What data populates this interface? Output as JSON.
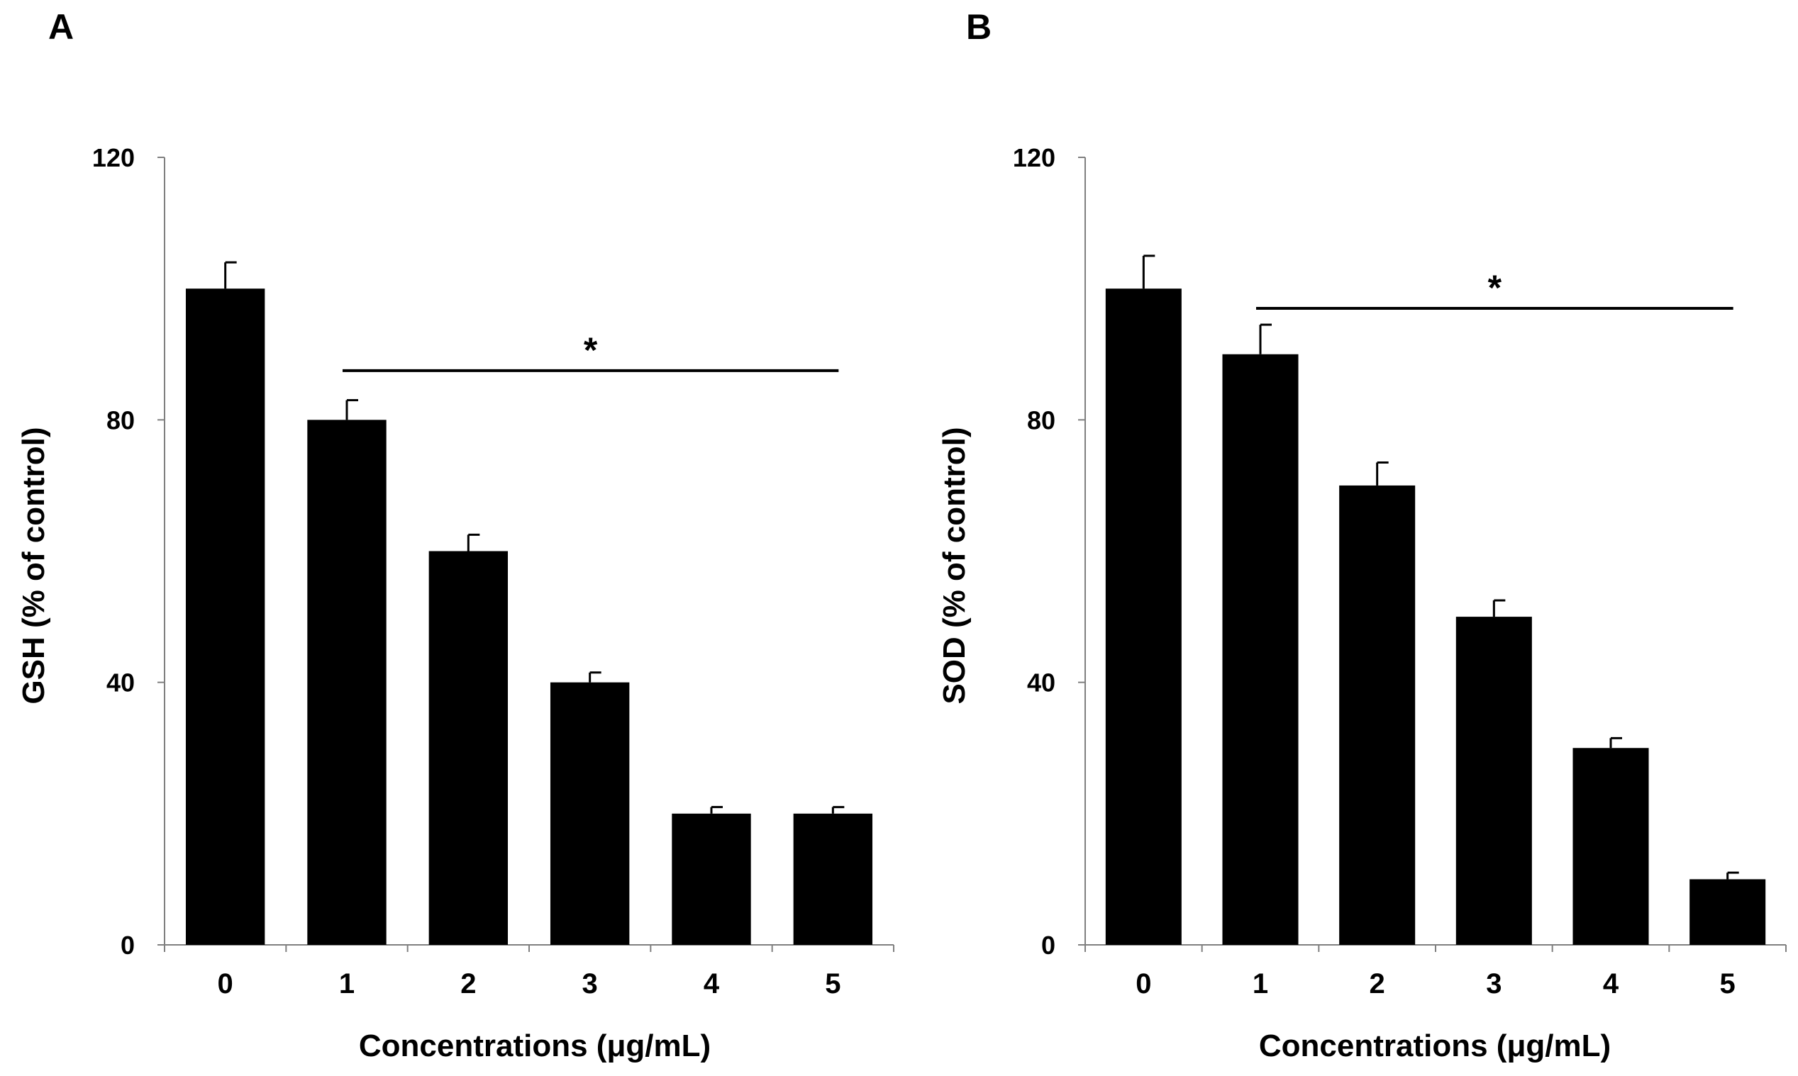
{
  "colors": {
    "bar": "#000000",
    "axis": "#7f7f7f",
    "text": "#000000",
    "background": "#ffffff"
  },
  "chart_data": [
    {
      "panel_label": "A",
      "type": "bar",
      "categories": [
        "0",
        "1",
        "2",
        "3",
        "4",
        "5"
      ],
      "values": [
        100,
        80,
        60,
        40,
        20,
        20
      ],
      "errors": [
        4,
        3,
        2.5,
        1.5,
        1,
        1
      ],
      "ylim": [
        0,
        120
      ],
      "yticks": [
        "0",
        "40",
        "80",
        "120"
      ],
      "xlabel": "Concentrations (μg/mL)",
      "ylabel": "GSH (% of control)",
      "significance": {
        "label": "*",
        "from_index": 1,
        "to_index": 5,
        "level": 87.5
      }
    },
    {
      "panel_label": "B",
      "type": "bar",
      "categories": [
        "0",
        "1",
        "2",
        "3",
        "4",
        "5"
      ],
      "values": [
        100,
        90,
        70,
        50,
        30,
        10
      ],
      "errors": [
        5,
        4.5,
        3.5,
        2.5,
        1.5,
        1
      ],
      "ylim": [
        0,
        120
      ],
      "yticks": [
        "0",
        "40",
        "80",
        "120"
      ],
      "xlabel": "Concentrations (μg/mL)",
      "ylabel": "SOD (% of control)",
      "significance": {
        "label": "*",
        "from_index": 1,
        "to_index": 5,
        "level": 97
      }
    }
  ]
}
